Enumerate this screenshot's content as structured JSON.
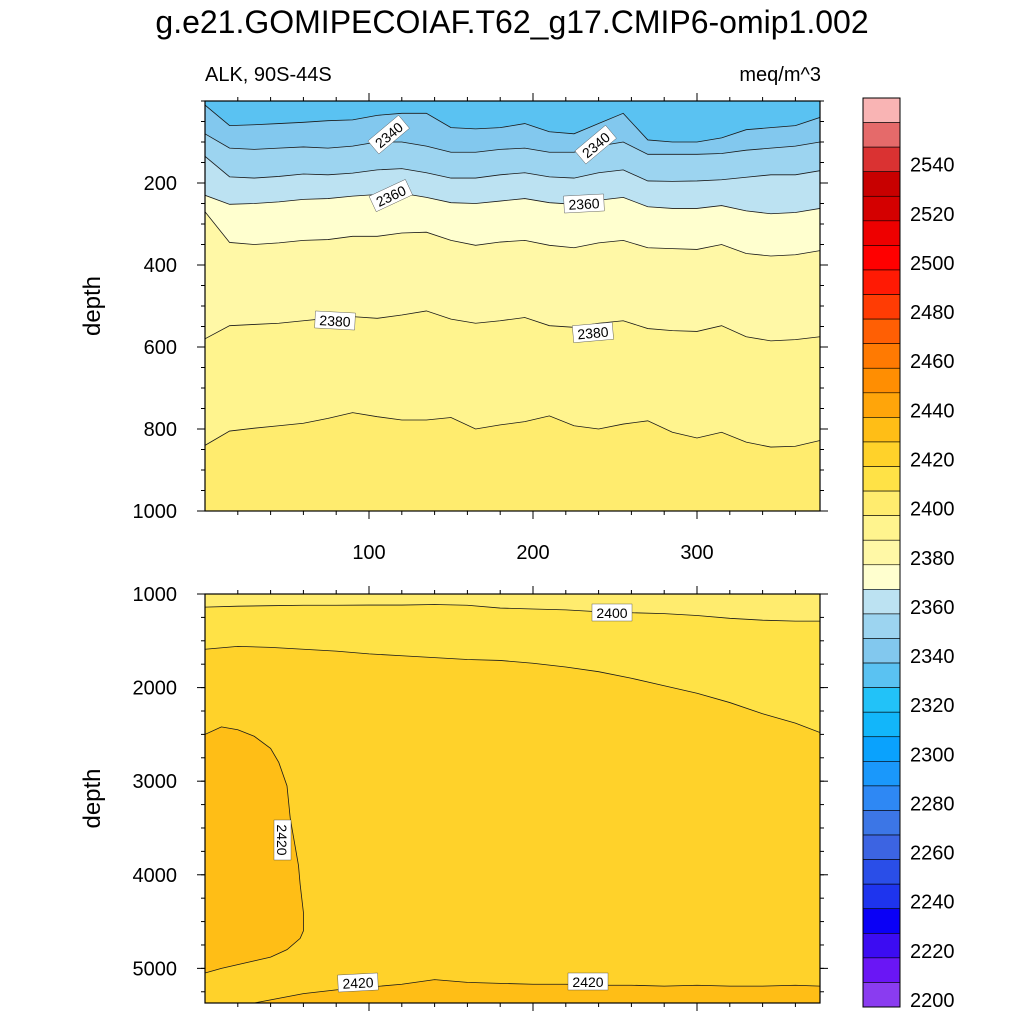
{
  "title": "g.e21.GOMIPECOIAF.T62_g17.CMIP6-omip1.002",
  "variable": "ALK, 90S-44S",
  "units": "meq/m^3",
  "colors": {
    "2200": "#8a3cf0",
    "2210": "#6a16f5",
    "2220": "#3c0cf2",
    "2230": "#0a00f6",
    "2240": "#1e34ee",
    "2250": "#2a4ee8",
    "2260": "#3c64e2",
    "2270": "#3c76e6",
    "2280": "#2e88f4",
    "2290": "#1a98fb",
    "2300": "#0aa2fd",
    "2310": "#12b6fa",
    "2320": "#22c2f8",
    "2330": "#5ac2f2",
    "2340": "#82c8ee",
    "2350": "#9cd4f0",
    "2360": "#bce2f2",
    "2370": "#ffffcf",
    "2380": "#fff8a6",
    "2390": "#fff48e",
    "2400": "#ffec6e",
    "2410": "#ffe246",
    "2420": "#ffd22a",
    "2430": "#ffbe16",
    "2440": "#ffa50a",
    "2450": "#ff8e02",
    "2460": "#ff7a02",
    "2470": "#ff5f04",
    "2480": "#ff3c04",
    "2490": "#ff1a04",
    "2500": "#ff0000",
    "2510": "#ee0000",
    "2520": "#d40000",
    "2530": "#c80000",
    "2540": "#da3232",
    "2550": "#e56a6a",
    "2560": "#f9b4b4"
  },
  "chart_data": [
    {
      "type": "contour",
      "panel": "upper",
      "ylabel": "depth",
      "xlabel": "",
      "xlim": [
        0,
        375
      ],
      "ylim": [
        1000,
        0
      ],
      "y_inverted": true,
      "xticks": [
        100,
        200,
        300
      ],
      "yticks": [
        200,
        400,
        600,
        800,
        1000
      ],
      "contour_interval": 10,
      "contour_lines": [
        {
          "level": 2330,
          "x": [
            0,
            15,
            30,
            45,
            60,
            75,
            90,
            105,
            120,
            135,
            150,
            165,
            180,
            195,
            210,
            225,
            240,
            255,
            270,
            285,
            300,
            315,
            330,
            345,
            360,
            375
          ],
          "y": [
            10,
            60,
            58,
            55,
            52,
            48,
            46,
            35,
            30,
            30,
            65,
            68,
            65,
            55,
            75,
            80,
            55,
            30,
            95,
            100,
            100,
            90,
            70,
            65,
            60,
            40
          ]
        },
        {
          "level": 2340,
          "x": [
            0,
            15,
            30,
            45,
            60,
            75,
            90,
            105,
            120,
            135,
            150,
            165,
            180,
            195,
            210,
            225,
            240,
            255,
            270,
            285,
            300,
            315,
            330,
            345,
            360,
            375
          ],
          "y": [
            80,
            115,
            118,
            115,
            112,
            115,
            110,
            100,
            100,
            110,
            125,
            125,
            118,
            115,
            125,
            125,
            110,
            100,
            130,
            130,
            130,
            128,
            120,
            115,
            110,
            100
          ]
        },
        {
          "level": 2350,
          "x": [
            0,
            15,
            30,
            45,
            60,
            75,
            90,
            105,
            120,
            135,
            150,
            165,
            180,
            195,
            210,
            225,
            240,
            255,
            270,
            285,
            300,
            315,
            330,
            345,
            360,
            375
          ],
          "y": [
            135,
            185,
            188,
            184,
            178,
            180,
            176,
            168,
            165,
            175,
            188,
            188,
            180,
            175,
            185,
            188,
            175,
            168,
            195,
            196,
            195,
            192,
            186,
            180,
            180,
            170
          ]
        },
        {
          "level": 2360,
          "x": [
            0,
            15,
            30,
            45,
            60,
            75,
            90,
            105,
            120,
            135,
            150,
            165,
            180,
            195,
            210,
            225,
            240,
            255,
            270,
            285,
            300,
            315,
            330,
            345,
            360,
            375
          ],
          "y": [
            230,
            252,
            250,
            246,
            240,
            238,
            232,
            228,
            225,
            235,
            248,
            250,
            244,
            238,
            248,
            252,
            242,
            235,
            258,
            262,
            262,
            255,
            268,
            275,
            272,
            262
          ]
        },
        {
          "level": 2370,
          "x": [
            0,
            15,
            30,
            45,
            60,
            75,
            90,
            105,
            120,
            135,
            150,
            165,
            180,
            195,
            210,
            225,
            240,
            255,
            270,
            285,
            300,
            315,
            330,
            345,
            360,
            375
          ],
          "y": [
            270,
            345,
            350,
            346,
            340,
            338,
            330,
            330,
            322,
            320,
            340,
            352,
            344,
            340,
            352,
            358,
            346,
            340,
            358,
            360,
            362,
            350,
            372,
            378,
            375,
            365
          ]
        },
        {
          "level": 2380,
          "x": [
            0,
            15,
            30,
            45,
            60,
            75,
            90,
            105,
            120,
            135,
            150,
            165,
            180,
            195,
            210,
            225,
            240,
            255,
            270,
            285,
            300,
            315,
            330,
            345,
            360,
            375
          ],
          "y": [
            580,
            548,
            545,
            542,
            536,
            530,
            526,
            530,
            522,
            512,
            532,
            542,
            536,
            528,
            548,
            552,
            542,
            536,
            555,
            560,
            562,
            548,
            575,
            585,
            582,
            575
          ]
        },
        {
          "level": 2390,
          "x": [
            0,
            15,
            30,
            45,
            60,
            75,
            90,
            105,
            120,
            135,
            150,
            165,
            180,
            195,
            210,
            225,
            240,
            255,
            270,
            285,
            300,
            315,
            330,
            345,
            360,
            375
          ],
          "y": [
            840,
            805,
            798,
            792,
            786,
            774,
            760,
            770,
            778,
            778,
            772,
            800,
            790,
            782,
            768,
            792,
            800,
            788,
            780,
            808,
            822,
            808,
            832,
            844,
            842,
            828
          ]
        }
      ],
      "contour_labels": [
        "2340",
        "2340",
        "2360",
        "2360",
        "2380",
        "2380"
      ]
    },
    {
      "type": "contour",
      "panel": "lower",
      "ylabel": "depth",
      "xlabel": "",
      "xlim": [
        0,
        375
      ],
      "ylim": [
        5370,
        1000
      ],
      "y_inverted": true,
      "xticks": [
        100,
        200,
        300
      ],
      "yticks": [
        1000,
        2000,
        3000,
        4000,
        5000
      ],
      "contour_interval": 10,
      "contour_lines": [
        {
          "level": 2400,
          "x": [
            0,
            20,
            40,
            60,
            80,
            100,
            120,
            140,
            160,
            180,
            200,
            220,
            240,
            260,
            280,
            300,
            320,
            340,
            360,
            375
          ],
          "y": [
            1140,
            1130,
            1125,
            1120,
            1120,
            1118,
            1118,
            1112,
            1120,
            1150,
            1160,
            1170,
            1190,
            1200,
            1210,
            1230,
            1260,
            1280,
            1290,
            1290
          ]
        },
        {
          "level": 2410,
          "x": [
            0,
            20,
            40,
            60,
            80,
            100,
            120,
            140,
            160,
            180,
            200,
            220,
            240,
            260,
            280,
            300,
            320,
            340,
            360,
            375
          ],
          "y": [
            1590,
            1560,
            1570,
            1590,
            1610,
            1640,
            1660,
            1680,
            1700,
            1710,
            1740,
            1780,
            1830,
            1900,
            1980,
            2060,
            2160,
            2280,
            2380,
            2480
          ]
        },
        {
          "level": 2420,
          "x": [
            0,
            10,
            20,
            30,
            40,
            45,
            50,
            52,
            55,
            57,
            58,
            60,
            60,
            58,
            50,
            40,
            30,
            20,
            10,
            0
          ],
          "y": [
            2500,
            2420,
            2450,
            2520,
            2650,
            2800,
            3050,
            3400,
            3700,
            3900,
            4100,
            4400,
            4600,
            4680,
            4800,
            4880,
            4920,
            4960,
            5000,
            5050
          ]
        },
        {
          "level": 2420,
          "x": [
            30,
            60,
            80,
            100,
            120,
            140,
            160,
            180,
            200,
            220,
            240,
            260,
            280,
            300,
            320,
            340,
            360,
            375
          ],
          "y": [
            5370,
            5270,
            5230,
            5200,
            5170,
            5120,
            5150,
            5160,
            5170,
            5170,
            5180,
            5180,
            5190,
            5180,
            5190,
            5190,
            5180,
            5190
          ]
        }
      ],
      "contour_labels": [
        "2400",
        "2420",
        "2420",
        "2420"
      ]
    }
  ],
  "colorbar": {
    "levels": [
      2200,
      2210,
      2220,
      2230,
      2240,
      2250,
      2260,
      2270,
      2280,
      2290,
      2300,
      2310,
      2320,
      2330,
      2340,
      2350,
      2360,
      2370,
      2380,
      2390,
      2400,
      2410,
      2420,
      2430,
      2440,
      2450,
      2460,
      2470,
      2480,
      2490,
      2500,
      2510,
      2520,
      2530,
      2540,
      2550,
      2560
    ],
    "tick_labels": [
      "2200",
      "2220",
      "2240",
      "2260",
      "2280",
      "2300",
      "2320",
      "2340",
      "2360",
      "2380",
      "2400",
      "2420",
      "2440",
      "2460",
      "2480",
      "2500",
      "2520",
      "2540"
    ]
  }
}
